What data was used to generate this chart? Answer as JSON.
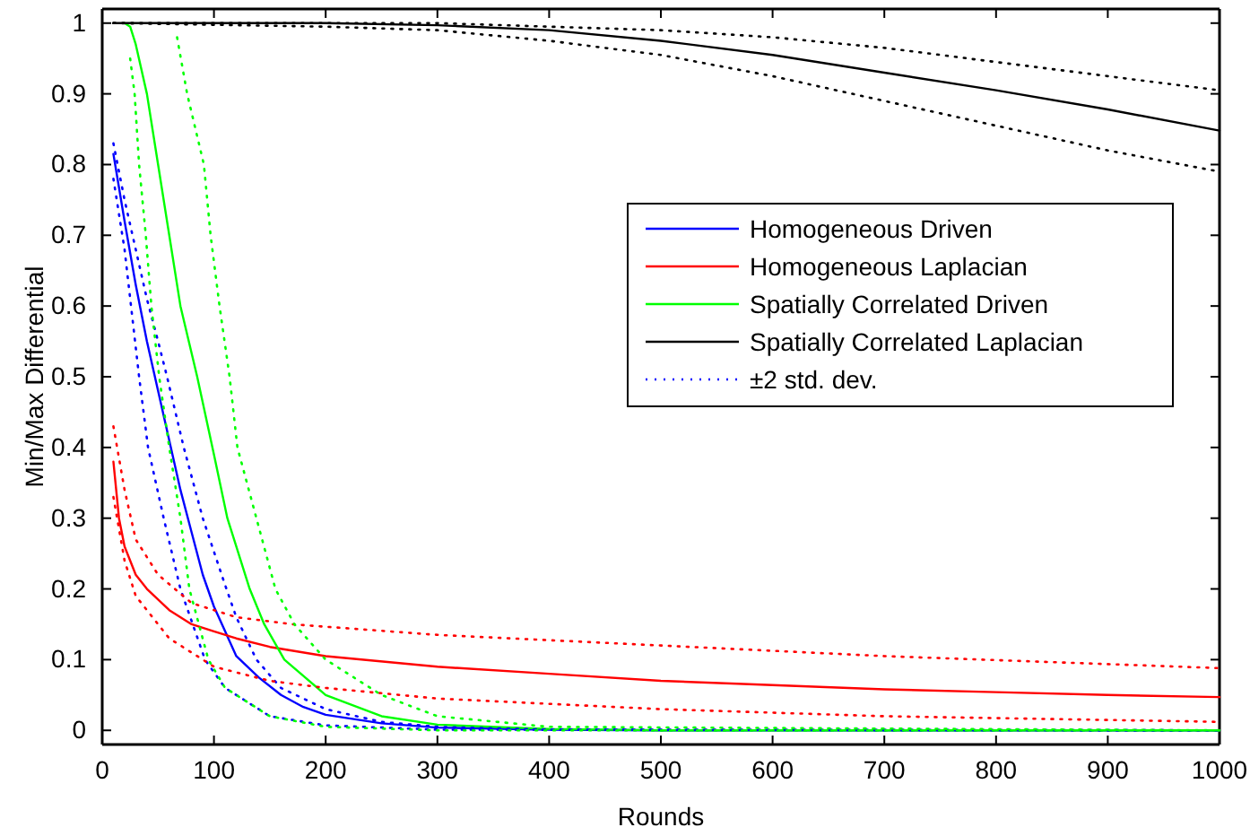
{
  "chart_data": {
    "type": "line",
    "xlabel": "Rounds",
    "ylabel": "Min/Max Differential",
    "xlim": [
      0,
      1000
    ],
    "ylim": [
      -0.02,
      1.02
    ],
    "xticks": [
      0,
      100,
      200,
      300,
      400,
      500,
      600,
      700,
      800,
      900,
      1000
    ],
    "yticks": [
      0,
      0.1,
      0.2,
      0.3,
      0.4,
      0.5,
      0.6,
      0.7,
      0.8,
      0.9,
      1
    ],
    "grid": false,
    "legend": "right",
    "marker": "none",
    "series": [
      {
        "name": "Homogeneous Driven",
        "color": "#0000ff",
        "line_style": "solid",
        "x": [
          10,
          20,
          30,
          40,
          50,
          60,
          70,
          80,
          90,
          100,
          110,
          120,
          140,
          160,
          180,
          200,
          250,
          300,
          400,
          500,
          1000
        ],
        "values": [
          0.815,
          0.72,
          0.63,
          0.55,
          0.48,
          0.41,
          0.34,
          0.28,
          0.22,
          0.175,
          0.14,
          0.105,
          0.075,
          0.05,
          0.033,
          0.022,
          0.01,
          0.004,
          0.001,
          0,
          0
        ]
      },
      {
        "name": "Homogeneous Laplacian",
        "color": "#ff0000",
        "line_style": "solid",
        "x": [
          10,
          15,
          20,
          30,
          40,
          60,
          80,
          100,
          120,
          150,
          200,
          300,
          400,
          500,
          600,
          700,
          800,
          900,
          1000
        ],
        "values": [
          0.38,
          0.3,
          0.26,
          0.22,
          0.2,
          0.17,
          0.15,
          0.14,
          0.13,
          0.118,
          0.105,
          0.09,
          0.08,
          0.07,
          0.064,
          0.058,
          0.054,
          0.05,
          0.047
        ]
      },
      {
        "name": "Spatially Correlated Driven",
        "color": "#00ff00",
        "line_style": "solid",
        "x": [
          20,
          25,
          30,
          40,
          50,
          60,
          70,
          85,
          100,
          112,
          132,
          145,
          163,
          200,
          250,
          300,
          400,
          500,
          1000
        ],
        "values": [
          1,
          0.995,
          0.97,
          0.9,
          0.8,
          0.7,
          0.6,
          0.5,
          0.39,
          0.3,
          0.2,
          0.15,
          0.1,
          0.05,
          0.02,
          0.008,
          0.002,
          0,
          0
        ]
      },
      {
        "name": "Spatially Correlated Laplacian",
        "color": "#000000",
        "line_style": "solid",
        "x": [
          10,
          200,
          300,
          400,
          500,
          600,
          700,
          800,
          900,
          1000
        ],
        "values": [
          1,
          1,
          0.997,
          0.99,
          0.975,
          0.955,
          0.93,
          0.905,
          0.878,
          0.848
        ]
      },
      {
        "name": "±2 std. dev.",
        "color": "#0000ff",
        "line_style": "dotted",
        "x": [
          10,
          20,
          30,
          40,
          50,
          58,
          73,
          90,
          109,
          120,
          138,
          160,
          200,
          250,
          300,
          400,
          1000
        ],
        "values": [
          0.83,
          0.75,
          0.68,
          0.61,
          0.55,
          0.5,
          0.4,
          0.3,
          0.21,
          0.16,
          0.1,
          0.06,
          0.03,
          0.012,
          0.005,
          0.001,
          0
        ]
      },
      {
        "color": "#0000ff",
        "line_style": "dotted",
        "x": [
          10,
          20,
          33,
          41,
          55,
          70,
          92,
          110,
          150,
          200,
          300,
          1000
        ],
        "values": [
          0.78,
          0.68,
          0.5,
          0.4,
          0.3,
          0.2,
          0.1,
          0.06,
          0.02,
          0.007,
          0.001,
          0
        ]
      },
      {
        "color": "#ff0000",
        "line_style": "dotted",
        "x": [
          10,
          20,
          30,
          50,
          80,
          120,
          170,
          300,
          500,
          700,
          1000
        ],
        "values": [
          0.43,
          0.34,
          0.27,
          0.22,
          0.18,
          0.16,
          0.15,
          0.135,
          0.12,
          0.105,
          0.088
        ]
      },
      {
        "color": "#ff0000",
        "line_style": "dotted",
        "x": [
          10,
          20,
          30,
          60,
          100,
          150,
          200,
          300,
          500,
          700,
          1000
        ],
        "values": [
          0.33,
          0.24,
          0.19,
          0.13,
          0.09,
          0.07,
          0.06,
          0.045,
          0.03,
          0.02,
          0.012
        ]
      },
      {
        "color": "#00ff00",
        "line_style": "dotted",
        "x": [
          67,
          76,
          91,
          97,
          105,
          114,
          121,
          138,
          155,
          172,
          200,
          250,
          300,
          400,
          1000
        ],
        "values": [
          0.98,
          0.9,
          0.8,
          0.7,
          0.6,
          0.5,
          0.4,
          0.3,
          0.2,
          0.15,
          0.1,
          0.05,
          0.02,
          0.005,
          0
        ]
      },
      {
        "color": "#00ff00",
        "line_style": "dotted",
        "x": [
          25,
          29,
          33,
          39,
          44,
          51,
          60,
          70,
          78,
          95,
          110,
          150,
          200,
          300,
          1000
        ],
        "values": [
          0.95,
          0.9,
          0.8,
          0.7,
          0.6,
          0.5,
          0.4,
          0.3,
          0.2,
          0.1,
          0.06,
          0.02,
          0.005,
          0,
          0
        ]
      },
      {
        "color": "#000000",
        "line_style": "dotted",
        "x": [
          10,
          300,
          400,
          500,
          600,
          700,
          800,
          900,
          1000
        ],
        "values": [
          1,
          1,
          0.995,
          0.99,
          0.98,
          0.965,
          0.945,
          0.925,
          0.905
        ]
      },
      {
        "color": "#000000",
        "line_style": "dotted",
        "x": [
          10,
          200,
          300,
          400,
          500,
          600,
          700,
          800,
          900,
          1000
        ],
        "values": [
          1,
          0.995,
          0.99,
          0.975,
          0.955,
          0.925,
          0.89,
          0.855,
          0.82,
          0.79
        ]
      }
    ]
  }
}
